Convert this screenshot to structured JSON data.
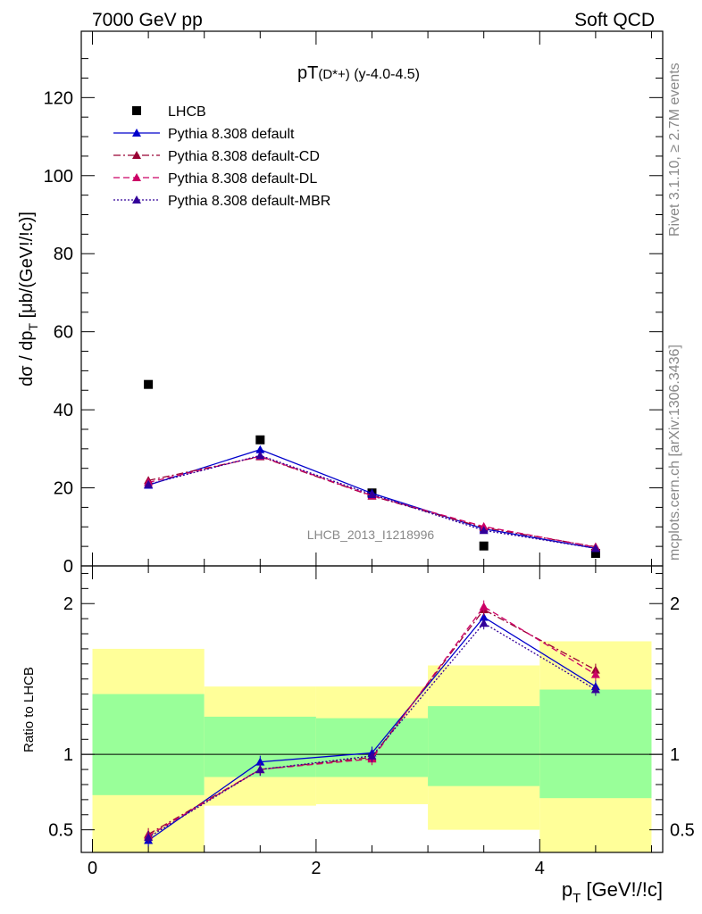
{
  "header": {
    "left": "7000 GeV pp",
    "right": "Soft QCD"
  },
  "side_labels": {
    "rivet": "Rivet 3.1.10, ≥ 2.7M events",
    "mcplots": "mcplots.cern.ch [arXiv:1306.3436]"
  },
  "chart_data": [
    {
      "type": "scatter",
      "panel": "main",
      "title": "pT(D*+) (y-4.0-4.5)",
      "title_main": "pT",
      "title_sub": "(D*+)",
      "title_tail": " (y-4.0-4.5)",
      "ylabel": "dσ / dp_T [μb/(GeV!/!c)]",
      "ylabel_main": "dσ / dp",
      "ylabel_sub": "T",
      "ylabel_tail": " [μb/(GeV!/!c)]",
      "xlim": [
        -0.1,
        5.1
      ],
      "ylim": [
        0,
        137
      ],
      "yticks": [
        0,
        20,
        40,
        60,
        80,
        100,
        120
      ],
      "watermark": "LHCB_2013_I1218996",
      "legend_position": "top-left",
      "x": [
        0.5,
        1.5,
        2.5,
        3.5,
        4.5
      ],
      "series": [
        {
          "name": "LHCB",
          "style": "square",
          "color": "#000000",
          "values": [
            46.5,
            32.3,
            18.7,
            5.1,
            3.2
          ]
        },
        {
          "name": "Pythia 8.308 default",
          "style": "solid",
          "color": "#0000cc",
          "values": [
            20.7,
            29.8,
            18.6,
            9.5,
            4.5
          ]
        },
        {
          "name": "Pythia 8.308 default-CD",
          "style": "dashdot",
          "color": "#990033",
          "values": [
            21.9,
            28.0,
            17.9,
            9.8,
            4.9
          ]
        },
        {
          "name": "Pythia 8.308 default-DL",
          "style": "dashed",
          "color": "#cc0066",
          "values": [
            21.4,
            28.1,
            18.0,
            10.1,
            4.8
          ]
        },
        {
          "name": "Pythia 8.308 default-MBR",
          "style": "dotted",
          "color": "#330099",
          "values": [
            20.9,
            28.3,
            18.3,
            9.1,
            4.5
          ]
        }
      ]
    },
    {
      "type": "line",
      "panel": "ratio",
      "ylabel": "Ratio to LHCB",
      "xlabel": "p_T [GeV!/!c]",
      "xlabel_main": "p",
      "xlabel_sub": "T",
      "xlabel_tail": " [GeV!/!c]",
      "xlim": [
        -0.1,
        5.1
      ],
      "ylim": [
        0.35,
        2.25
      ],
      "xticks": [
        0,
        2,
        4
      ],
      "yticks": [
        0.5,
        1,
        2
      ],
      "ytick_labels": [
        "0.5",
        "1",
        "2"
      ],
      "reference_line": 1,
      "bands": [
        {
          "x0": 0,
          "x1": 1,
          "yellow": [
            0.35,
            1.7
          ],
          "green": [
            0.73,
            1.4
          ]
        },
        {
          "x0": 1,
          "x1": 2,
          "yellow": [
            0.66,
            1.45
          ],
          "green": [
            0.85,
            1.25
          ]
        },
        {
          "x0": 2,
          "x1": 3,
          "yellow": [
            0.67,
            1.45
          ],
          "green": [
            0.85,
            1.24
          ]
        },
        {
          "x0": 3,
          "x1": 4,
          "yellow": [
            0.5,
            1.59
          ],
          "green": [
            0.79,
            1.32
          ]
        },
        {
          "x0": 4,
          "x1": 5,
          "yellow": [
            0.35,
            1.75
          ],
          "green": [
            0.71,
            1.43
          ]
        }
      ],
      "x": [
        0.5,
        1.5,
        2.5,
        3.5,
        4.5
      ],
      "series": [
        {
          "name": "Pythia 8.308 default",
          "style": "solid",
          "color": "#0000cc",
          "values": [
            0.43,
            0.95,
            1.01,
            1.91,
            1.45
          ]
        },
        {
          "name": "Pythia 8.308 default-CD",
          "style": "dashdot",
          "color": "#990033",
          "values": [
            0.47,
            0.9,
            0.98,
            1.96,
            1.56
          ]
        },
        {
          "name": "Pythia 8.308 default-DL",
          "style": "dashed",
          "color": "#cc0066",
          "values": [
            0.46,
            0.9,
            0.97,
            1.98,
            1.53
          ]
        },
        {
          "name": "Pythia 8.308 default-MBR",
          "style": "dotted",
          "color": "#330099",
          "values": [
            0.45,
            0.9,
            0.99,
            1.87,
            1.43
          ]
        }
      ]
    }
  ]
}
